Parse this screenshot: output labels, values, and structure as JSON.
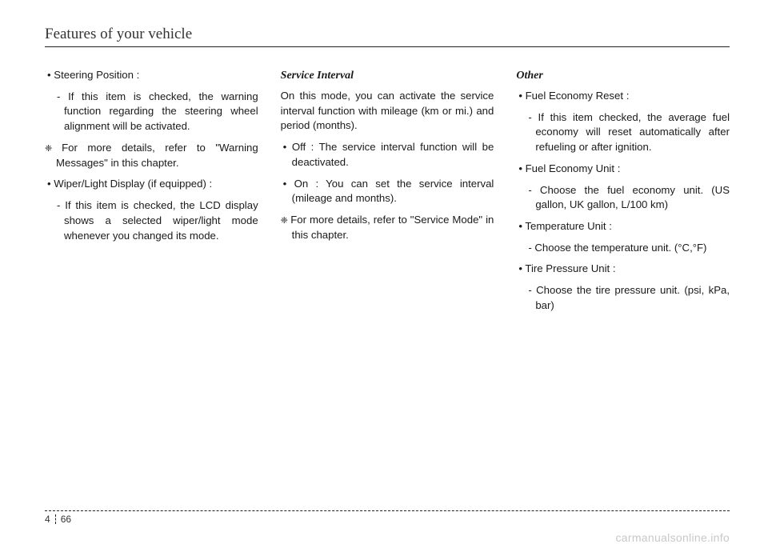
{
  "header": {
    "title": "Features of your vehicle"
  },
  "col1": {
    "items": [
      {
        "kind": "bullet",
        "text": "Steering Position :"
      },
      {
        "kind": "sub",
        "text": "If this item is checked, the warning function regarding the steering wheel alignment will be activated."
      },
      {
        "kind": "note",
        "text": "For more details, refer to \"Warning Messages\" in this chapter."
      },
      {
        "kind": "bullet",
        "text": "Wiper/Light Display (if equipped) :"
      },
      {
        "kind": "sub",
        "text": "If this item is checked, the LCD display shows a selected wiper/light mode whenever you changed its mode."
      }
    ]
  },
  "col2": {
    "title": "Service Interval",
    "items": [
      {
        "kind": "para",
        "text": "On this mode, you can activate the service interval function with mileage (km or mi.) and period (months)."
      },
      {
        "kind": "bullet",
        "text": "Off : The service interval function will be deactivated."
      },
      {
        "kind": "bullet",
        "text": "On : You can set the service interval (mileage and months)."
      },
      {
        "kind": "note",
        "text": "For more details, refer to \"Service Mode\" in this chapter."
      }
    ]
  },
  "col3": {
    "title": "Other",
    "items": [
      {
        "kind": "bullet",
        "text": "Fuel Economy Reset :"
      },
      {
        "kind": "sub",
        "text": "If this item checked, the average fuel economy will reset automatically after refueling or after ignition."
      },
      {
        "kind": "bullet",
        "text": "Fuel Economy Unit :"
      },
      {
        "kind": "sub",
        "text": "Choose the fuel economy unit. (US gallon, UK gallon, L/100 km)"
      },
      {
        "kind": "bullet",
        "text": "Temperature Unit :"
      },
      {
        "kind": "sub",
        "text": "Choose the temperature unit. (°C,°F)"
      },
      {
        "kind": "bullet",
        "text": "Tire Pressure Unit :"
      },
      {
        "kind": "sub",
        "text": "Choose the tire pressure unit. (psi, kPa, bar)"
      }
    ]
  },
  "footer": {
    "section": "4",
    "page": "66"
  },
  "watermark": "carmanualsonline.info"
}
